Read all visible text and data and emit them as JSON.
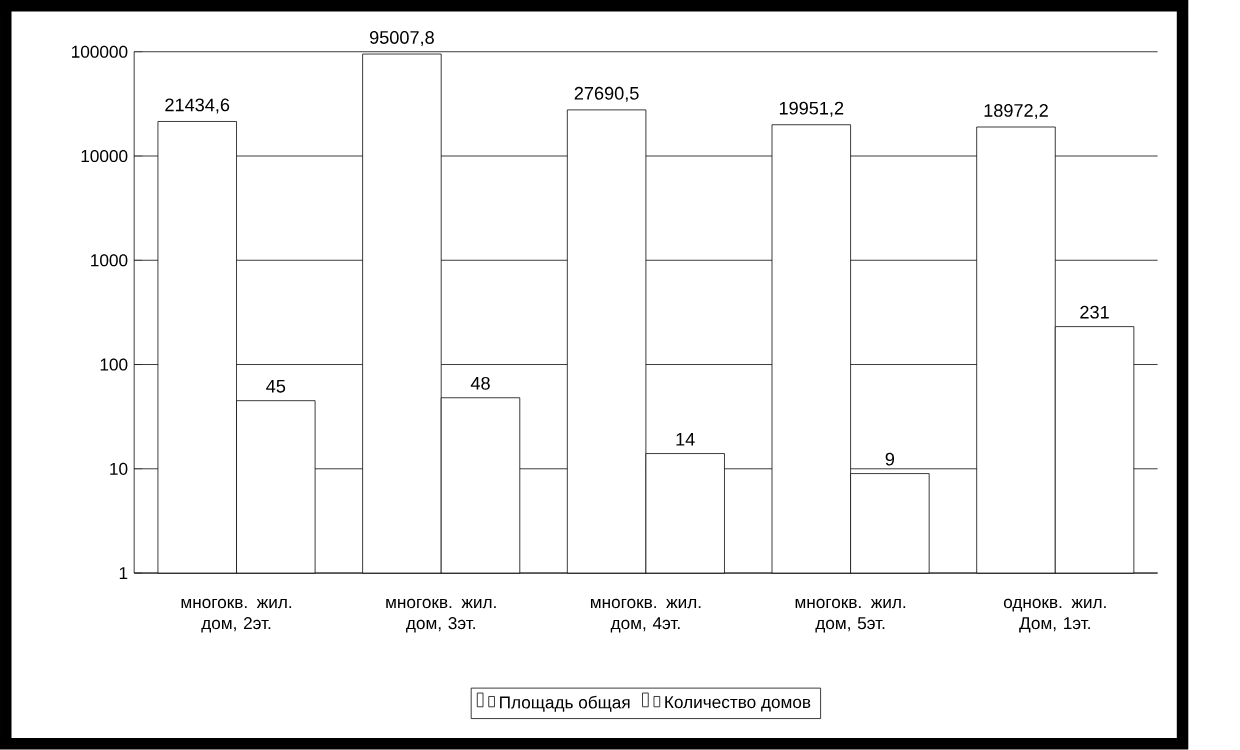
{
  "chart_data": {
    "type": "bar",
    "log": "y",
    "grid": "y",
    "legend": "bottom",
    "categories": [
      "многокв. жил. дом, 2эт.",
      "многокв. жил. дом, 3эт.",
      "многокв. жил. дом, 4эт.",
      "многокв. жил. дом, 5эт.",
      "однокв. жил. Дом, 1эт."
    ],
    "ylim": [
      1,
      100000
    ],
    "yticks": [
      1,
      10,
      100,
      1000,
      10000,
      100000
    ],
    "series": [
      {
        "name": "Площадь общая",
        "color": "#ffffff",
        "values": [
          21434.6,
          95007.8,
          27690.5,
          19951.2,
          18972.2
        ],
        "value_labels": [
          "21434,6",
          "95007,8",
          "27690,5",
          "19951,2",
          "18972,2"
        ]
      },
      {
        "name": "Количество домов",
        "color": "#ffffff",
        "values": [
          45,
          48,
          14,
          9,
          231
        ],
        "value_labels": [
          "45",
          "48",
          "14",
          "9",
          "231"
        ]
      }
    ]
  }
}
